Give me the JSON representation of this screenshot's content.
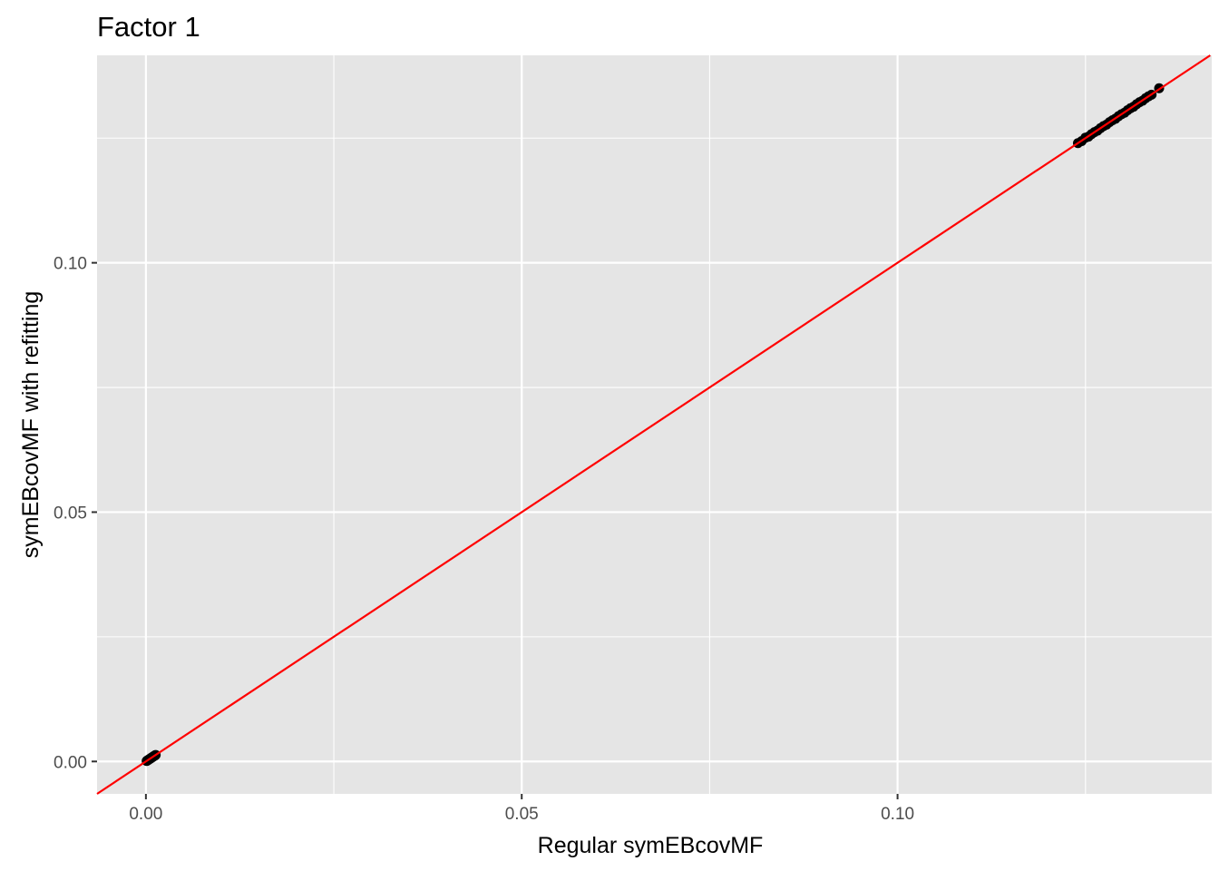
{
  "chart_data": {
    "type": "scatter",
    "title": "Factor 1",
    "xlabel": "Regular symEBcovMF",
    "ylabel": "symEBcovMF with refitting",
    "xlim": [
      -0.0065,
      0.1418
    ],
    "ylim": [
      -0.0065,
      0.1416
    ],
    "x_ticks": [
      0.0,
      0.05,
      0.1
    ],
    "x_tick_labels": [
      "0.00",
      "0.05",
      "0.10"
    ],
    "y_ticks": [
      0.0,
      0.05,
      0.1
    ],
    "y_tick_labels": [
      "0.00",
      "0.05",
      "0.10"
    ],
    "grid": true,
    "reference_line": {
      "slope": 1,
      "intercept": 0,
      "color": "#ff0000"
    },
    "colors": {
      "panel": "#e5e5e5",
      "grid": "#ffffff",
      "point": "#000000",
      "line": "#ff0000"
    },
    "points": [
      [
        0.0001,
        0.0001
      ],
      [
        0.0002,
        0.0002
      ],
      [
        0.0003,
        0.0003
      ],
      [
        0.0004,
        0.0004
      ],
      [
        0.0005,
        0.0005
      ],
      [
        0.0006,
        0.0006
      ],
      [
        0.0007,
        0.0007
      ],
      [
        0.0008,
        0.0008
      ],
      [
        0.0009,
        0.0009
      ],
      [
        0.001,
        0.001
      ],
      [
        0.0011,
        0.0011
      ],
      [
        0.0012,
        0.0012
      ],
      [
        0.0013,
        0.0013
      ],
      [
        0.124,
        0.124
      ],
      [
        0.1245,
        0.1244
      ],
      [
        0.125,
        0.1251
      ],
      [
        0.1254,
        0.1253
      ],
      [
        0.1258,
        0.1258
      ],
      [
        0.1262,
        0.1262
      ],
      [
        0.1266,
        0.1265
      ],
      [
        0.127,
        0.127
      ],
      [
        0.1274,
        0.1274
      ],
      [
        0.1278,
        0.1277
      ],
      [
        0.1282,
        0.1282
      ],
      [
        0.1286,
        0.1286
      ],
      [
        0.129,
        0.1289
      ],
      [
        0.1294,
        0.1294
      ],
      [
        0.1298,
        0.1298
      ],
      [
        0.1302,
        0.1301
      ],
      [
        0.1306,
        0.1306
      ],
      [
        0.131,
        0.131
      ],
      [
        0.1314,
        0.1313
      ],
      [
        0.1318,
        0.1318
      ],
      [
        0.1322,
        0.1322
      ],
      [
        0.1326,
        0.1325
      ],
      [
        0.133,
        0.133
      ],
      [
        0.1334,
        0.1334
      ],
      [
        0.1338,
        0.1337
      ],
      [
        0.1348,
        0.135
      ]
    ]
  }
}
